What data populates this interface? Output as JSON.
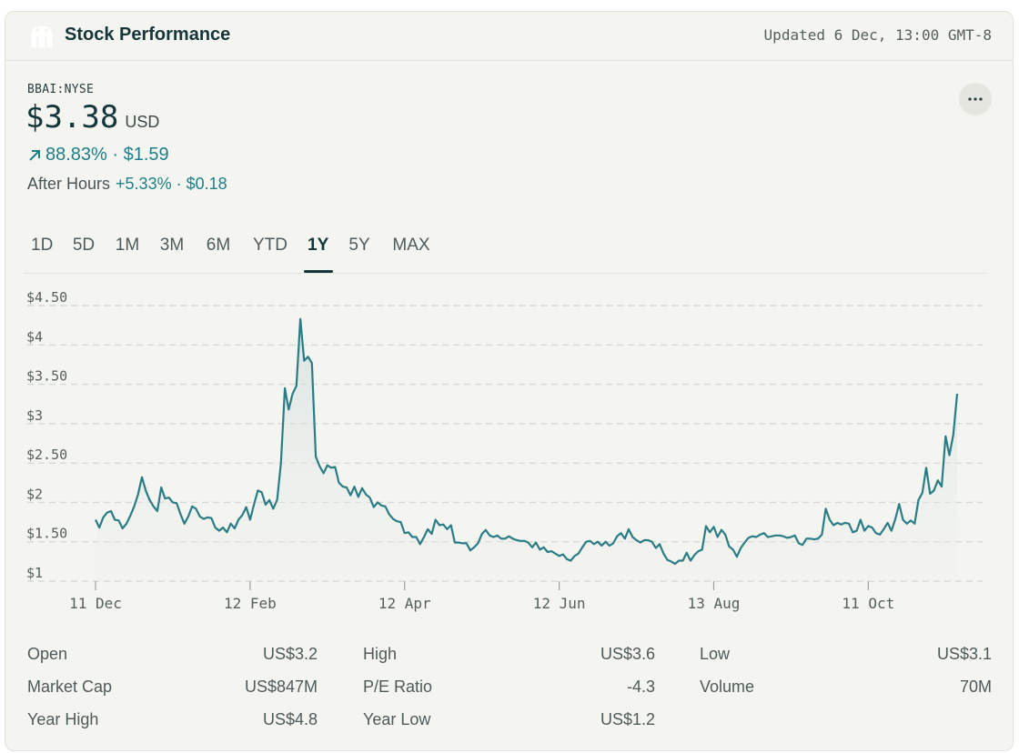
{
  "header": {
    "title": "Stock Performance",
    "updated": "Updated 6 Dec, 13:00 GMT-8"
  },
  "quote": {
    "ticker": "BBAI:NYSE",
    "price": "$3.38",
    "currency": "USD",
    "change": "88.83% · $1.59",
    "after_hours_label": "After Hours",
    "after_hours_change": "+5.33% · $0.18"
  },
  "tabs": [
    "1D",
    "5D",
    "1M",
    "3M",
    "6M",
    "YTD",
    "1Y",
    "5Y",
    "MAX"
  ],
  "active_tab": "1Y",
  "colors": {
    "accent": "#1e7f87",
    "line": "#2a7d85",
    "text_dark": "#13363a"
  },
  "chart_data": {
    "type": "area",
    "y_tick_labels": [
      "$4.50",
      "$4",
      "$3.50",
      "$3",
      "$2.50",
      "$2",
      "$1.50",
      "$1"
    ],
    "y_tick_values": [
      4.5,
      4,
      3.5,
      3,
      2.5,
      2,
      1.5,
      1
    ],
    "ylim": [
      1,
      4.5
    ],
    "x_tick_labels": [
      "11 Dec",
      "12 Feb",
      "12 Apr",
      "12 Jun",
      "13 Aug",
      "11 Oct"
    ],
    "x_tick_index": [
      0,
      40,
      80,
      120,
      160,
      200
    ],
    "grid": true,
    "values": [
      1.78,
      1.68,
      1.81,
      1.87,
      1.89,
      1.78,
      1.77,
      1.67,
      1.73,
      1.83,
      1.95,
      2.1,
      2.32,
      2.15,
      2.03,
      1.95,
      1.89,
      2.19,
      2.05,
      2.06,
      2.0,
      1.99,
      1.85,
      1.73,
      1.82,
      1.95,
      1.92,
      1.82,
      1.79,
      1.81,
      1.8,
      1.68,
      1.64,
      1.68,
      1.62,
      1.73,
      1.67,
      1.78,
      1.84,
      1.94,
      1.78,
      1.97,
      2.15,
      2.13,
      1.97,
      2.03,
      1.92,
      2.03,
      2.5,
      3.45,
      3.18,
      3.38,
      3.48,
      4.33,
      3.8,
      3.85,
      3.77,
      2.58,
      2.46,
      2.37,
      2.47,
      2.44,
      2.45,
      2.25,
      2.2,
      2.19,
      2.09,
      2.2,
      2.07,
      2.18,
      2.1,
      2.06,
      1.94,
      2.0,
      1.96,
      1.95,
      1.85,
      1.79,
      1.76,
      1.75,
      1.61,
      1.62,
      1.56,
      1.56,
      1.47,
      1.56,
      1.66,
      1.6,
      1.78,
      1.71,
      1.72,
      1.66,
      1.71,
      1.49,
      1.49,
      1.48,
      1.48,
      1.39,
      1.43,
      1.48,
      1.6,
      1.65,
      1.58,
      1.56,
      1.58,
      1.54,
      1.54,
      1.57,
      1.54,
      1.52,
      1.51,
      1.51,
      1.49,
      1.43,
      1.49,
      1.4,
      1.43,
      1.37,
      1.38,
      1.35,
      1.32,
      1.34,
      1.28,
      1.26,
      1.32,
      1.35,
      1.43,
      1.5,
      1.51,
      1.47,
      1.5,
      1.45,
      1.5,
      1.45,
      1.48,
      1.57,
      1.61,
      1.54,
      1.66,
      1.56,
      1.52,
      1.49,
      1.52,
      1.52,
      1.5,
      1.42,
      1.47,
      1.35,
      1.27,
      1.25,
      1.22,
      1.26,
      1.26,
      1.36,
      1.26,
      1.33,
      1.38,
      1.4,
      1.7,
      1.62,
      1.69,
      1.56,
      1.65,
      1.59,
      1.44,
      1.4,
      1.31,
      1.42,
      1.49,
      1.55,
      1.57,
      1.56,
      1.59,
      1.61,
      1.56,
      1.57,
      1.58,
      1.58,
      1.57,
      1.55,
      1.56,
      1.58,
      1.48,
      1.46,
      1.54,
      1.54,
      1.53,
      1.54,
      1.59,
      1.92,
      1.78,
      1.71,
      1.74,
      1.72,
      1.74,
      1.73,
      1.62,
      1.64,
      1.78,
      1.64,
      1.7,
      1.68,
      1.61,
      1.59,
      1.66,
      1.74,
      1.64,
      1.79,
      1.98,
      1.78,
      1.73,
      1.77,
      1.73,
      2.03,
      2.12,
      2.44,
      2.11,
      2.15,
      2.28,
      2.2,
      2.84,
      2.6,
      2.86,
      3.38
    ]
  },
  "stats": [
    {
      "label": "Open",
      "value": "US$3.2"
    },
    {
      "label": "High",
      "value": "US$3.6"
    },
    {
      "label": "Low",
      "value": "US$3.1"
    },
    {
      "label": "Market Cap",
      "value": "US$847M"
    },
    {
      "label": "P/E Ratio",
      "value": "-4.3"
    },
    {
      "label": "Volume",
      "value": "70M"
    },
    {
      "label": "Year High",
      "value": "US$4.8"
    },
    {
      "label": "Year Low",
      "value": "US$1.2"
    }
  ]
}
